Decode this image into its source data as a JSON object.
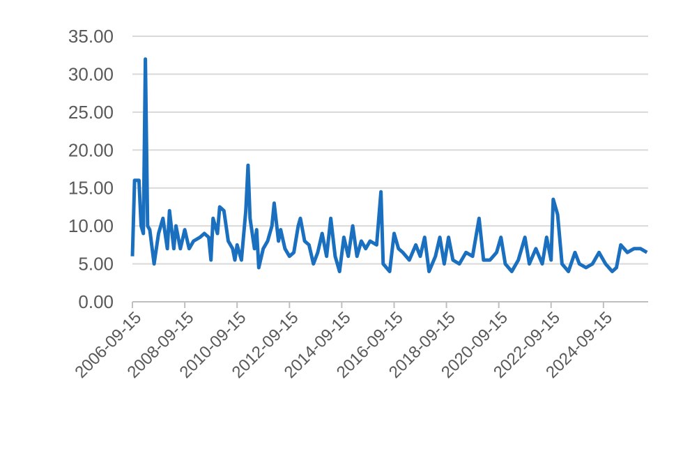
{
  "chart_data": {
    "type": "line",
    "x": [
      "2006-09-15",
      "2006-10-15",
      "2006-12-15",
      "2007-01-15",
      "2007-02-15",
      "2007-03-15",
      "2007-04-15",
      "2007-05-15",
      "2007-07-15",
      "2007-09-15",
      "2007-11-15",
      "2008-01-15",
      "2008-02-15",
      "2008-04-15",
      "2008-05-15",
      "2008-07-15",
      "2008-09-15",
      "2008-11-15",
      "2009-01-15",
      "2009-04-15",
      "2009-06-15",
      "2009-08-15",
      "2009-09-15",
      "2009-10-15",
      "2009-12-15",
      "2010-01-15",
      "2010-03-15",
      "2010-05-15",
      "2010-07-15",
      "2010-08-15",
      "2010-09-15",
      "2010-11-15",
      "2011-01-15",
      "2011-02-15",
      "2011-03-15",
      "2011-05-15",
      "2011-06-15",
      "2011-07-15",
      "2011-09-15",
      "2011-11-15",
      "2012-01-15",
      "2012-02-15",
      "2012-04-15",
      "2012-05-15",
      "2012-07-15",
      "2012-09-15",
      "2012-11-15",
      "2013-01-15",
      "2013-02-15",
      "2013-04-15",
      "2013-06-15",
      "2013-08-15",
      "2013-10-15",
      "2013-12-15",
      "2014-02-15",
      "2014-04-15",
      "2014-06-15",
      "2014-08-15",
      "2014-10-15",
      "2014-12-15",
      "2015-02-15",
      "2015-04-15",
      "2015-06-15",
      "2015-08-15",
      "2015-10-15",
      "2016-01-15",
      "2016-03-15",
      "2016-04-15",
      "2016-07-15",
      "2016-09-15",
      "2016-11-15",
      "2017-01-15",
      "2017-04-15",
      "2017-07-15",
      "2017-09-15",
      "2017-11-15",
      "2018-01-15",
      "2018-04-15",
      "2018-06-15",
      "2018-08-15",
      "2018-10-15",
      "2018-12-15",
      "2019-03-15",
      "2019-06-15",
      "2019-09-15",
      "2019-12-15",
      "2020-02-15",
      "2020-05-15",
      "2020-08-15",
      "2020-10-15",
      "2020-12-15",
      "2021-03-15",
      "2021-06-15",
      "2021-09-15",
      "2021-11-15",
      "2022-02-15",
      "2022-05-15",
      "2022-07-15",
      "2022-09-15",
      "2022-10-15",
      "2022-12-15",
      "2023-02-15",
      "2023-05-15",
      "2023-08-15",
      "2023-10-15",
      "2024-01-15",
      "2024-04-15",
      "2024-07-15",
      "2024-10-15",
      "2025-01-15",
      "2025-03-15",
      "2025-05-15",
      "2025-08-15",
      "2025-11-15",
      "2026-02-15",
      "2026-05-15"
    ],
    "series": [
      {
        "color": "#1a6fbf",
        "values": [
          6,
          16,
          16,
          10,
          9,
          32,
          10,
          9.5,
          5,
          9,
          11,
          7,
          12,
          7,
          10,
          7,
          9.5,
          7,
          8,
          8.5,
          9,
          8.5,
          5.5,
          11,
          9,
          12.5,
          12,
          8,
          7,
          5.5,
          7.5,
          5.5,
          12,
          18,
          11,
          7,
          9.5,
          4.5,
          7,
          8,
          10,
          13,
          8,
          9.5,
          7,
          6,
          6.5,
          10,
          11,
          8,
          7.5,
          5,
          6.5,
          9,
          6,
          11,
          6,
          4,
          8.5,
          6,
          10,
          6,
          8,
          7,
          8,
          7.5,
          14.5,
          5,
          4,
          9,
          7,
          6.5,
          5.5,
          7.5,
          6,
          8.5,
          4,
          6,
          8.5,
          5,
          8.5,
          5.5,
          5,
          6.5,
          6,
          11,
          5.5,
          5.5,
          6.5,
          8.5,
          5,
          4,
          5.5,
          8.5,
          5,
          7,
          5,
          8.5,
          5.5,
          13.5,
          11.5,
          5,
          4,
          6.5,
          5,
          4.5,
          5,
          6.5,
          5,
          4,
          4.5,
          7.5,
          6.5,
          7,
          7,
          6.5
        ]
      }
    ],
    "xlim": [
      "2006-09-15",
      "2026-06-01"
    ],
    "xticks": [
      "2006-09-15",
      "2008-09-15",
      "2010-09-15",
      "2012-09-15",
      "2014-09-15",
      "2016-09-15",
      "2018-09-15",
      "2020-09-15",
      "2022-09-15",
      "2024-09-15"
    ],
    "ylim": [
      0,
      35
    ],
    "yticks": [
      {
        "value": 0,
        "label": "0.00"
      },
      {
        "value": 5,
        "label": "5.00"
      },
      {
        "value": 10,
        "label": "10.00"
      },
      {
        "value": 15,
        "label": "15.00"
      },
      {
        "value": 20,
        "label": "20.00"
      },
      {
        "value": 25,
        "label": "25.00"
      },
      {
        "value": 30,
        "label": "30.00"
      },
      {
        "value": 35,
        "label": "35.00"
      }
    ],
    "grid": true
  }
}
